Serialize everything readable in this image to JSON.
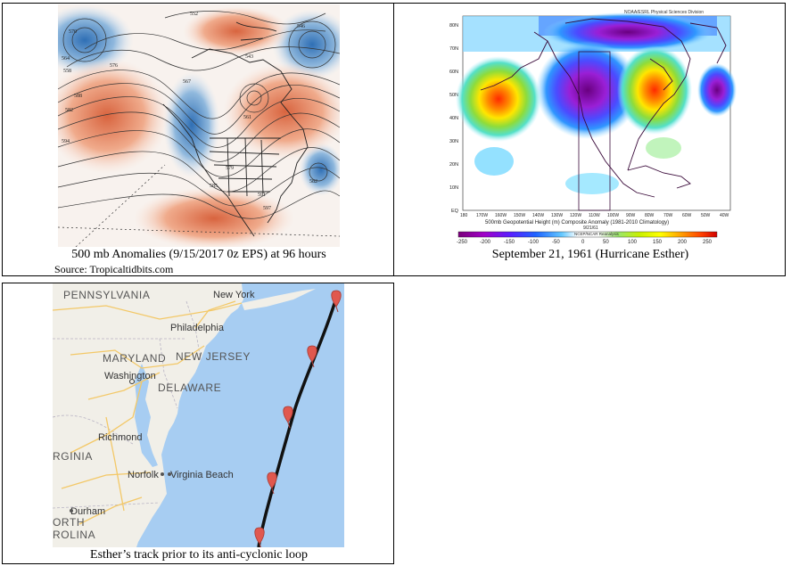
{
  "top_left": {
    "caption": "500 mb Anomalies (9/15/2017 0z EPS) at 96 hours",
    "source": "Source: Tropicaltidbits.com",
    "contour_labels": [
      "576",
      "582",
      "582",
      "570",
      "564",
      "558",
      "561",
      "594",
      "588",
      "567",
      "579",
      "585",
      "591",
      "597",
      "546",
      "552",
      "543"
    ]
  },
  "top_right": {
    "caption": "September 21, 1961 (Hurricane Esther)",
    "header": "NOAA/ESRL Physical Sciences Division",
    "lat_ticks": [
      "80N",
      "70N",
      "60N",
      "50N",
      "40N",
      "30N",
      "20N",
      "10N",
      "EQ"
    ],
    "lon_ticks": [
      "180",
      "170W",
      "160W",
      "150W",
      "140W",
      "130W",
      "120W",
      "110W",
      "100W",
      "90W",
      "80W",
      "70W",
      "60W",
      "50W",
      "40W"
    ],
    "axis_title": "500mb Geopotential Height (m) Composite Anomaly (1981-2010 Climatology)",
    "date_label": "9/21/61",
    "credit": "NCEP/NCAR Reanalysis",
    "colorbar_ticks": [
      "-250",
      "-200",
      "-150",
      "-100",
      "-50",
      "0",
      "50",
      "100",
      "150",
      "200",
      "250"
    ],
    "colorbar_colors": [
      "#7a007a",
      "#a000c8",
      "#7d00e6",
      "#4b28ff",
      "#1e64ff",
      "#2d9bff",
      "#64c8ff",
      "#a0e6ff",
      "#ffffff",
      "#ffffff",
      "#b4f096",
      "#78dc3c",
      "#c8f000",
      "#ffff00",
      "#ffd200",
      "#ffa000",
      "#ff6400",
      "#ff2800",
      "#e60000"
    ]
  },
  "bottom_left": {
    "caption": "Esther’s track prior to its anti-cyclonic loop",
    "labels": {
      "pennsylvania": "PENNSYLVANIA",
      "new_york": "New York",
      "philadelphia": "Philadelphia",
      "maryland": "MARYLAND",
      "new_jersey": "NEW JERSEY",
      "washington": "Washington",
      "delaware": "DELAWARE",
      "richmond": "Richmond",
      "virginia": "RGINIA",
      "norfolk": "Norfolk",
      "virginia_beach": "Virginia Beach",
      "durham": "Durham",
      "north": "ORTH",
      "carolina": "ROLINA"
    },
    "colors": {
      "land": "#f1efe8",
      "water": "#a7cdf2",
      "track": "#111111",
      "marker": "#e0584f"
    },
    "track_points": 5
  }
}
